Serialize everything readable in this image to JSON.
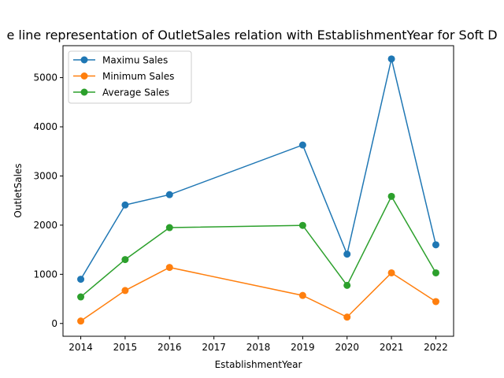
{
  "chart_data": {
    "type": "line",
    "title": "e line representation of OutletSales relation with EstablishmentYear for Soft D",
    "xlabel": "EstablishmentYear",
    "ylabel": "OutletSales",
    "x": [
      2014,
      2015,
      2016,
      2019,
      2020,
      2021,
      2022
    ],
    "xticks": [
      "2014",
      "2015",
      "2016",
      "2017",
      "2018",
      "2019",
      "2020",
      "2021",
      "2022"
    ],
    "yticks": [
      "0",
      "1000",
      "2000",
      "3000",
      "4000",
      "5000"
    ],
    "xlim": [
      2013.6,
      2022.4
    ],
    "ylim": [
      -260,
      5650
    ],
    "grid": false,
    "legend_position": "top-left",
    "series": [
      {
        "name": "Maximu Sales",
        "color": "#1f77b4",
        "values": [
          900,
          2410,
          2620,
          3630,
          1410,
          5380,
          1600
        ]
      },
      {
        "name": "Minimum Sales",
        "color": "#ff7f0e",
        "values": [
          50,
          670,
          1140,
          570,
          130,
          1030,
          445
        ]
      },
      {
        "name": "Average Sales",
        "color": "#2ca02c",
        "values": [
          540,
          1300,
          1950,
          1995,
          775,
          2585,
          1030
        ]
      }
    ]
  }
}
